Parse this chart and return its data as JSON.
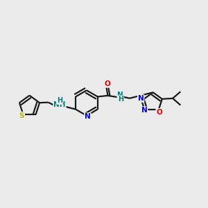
{
  "bg_color": "#ebebeb",
  "bond_color": "#1a1a1a",
  "bond_width": 1.6,
  "atom_colors": {
    "N": "#0000e0",
    "O": "#e00000",
    "S": "#b8b800",
    "NH": "#008080"
  }
}
